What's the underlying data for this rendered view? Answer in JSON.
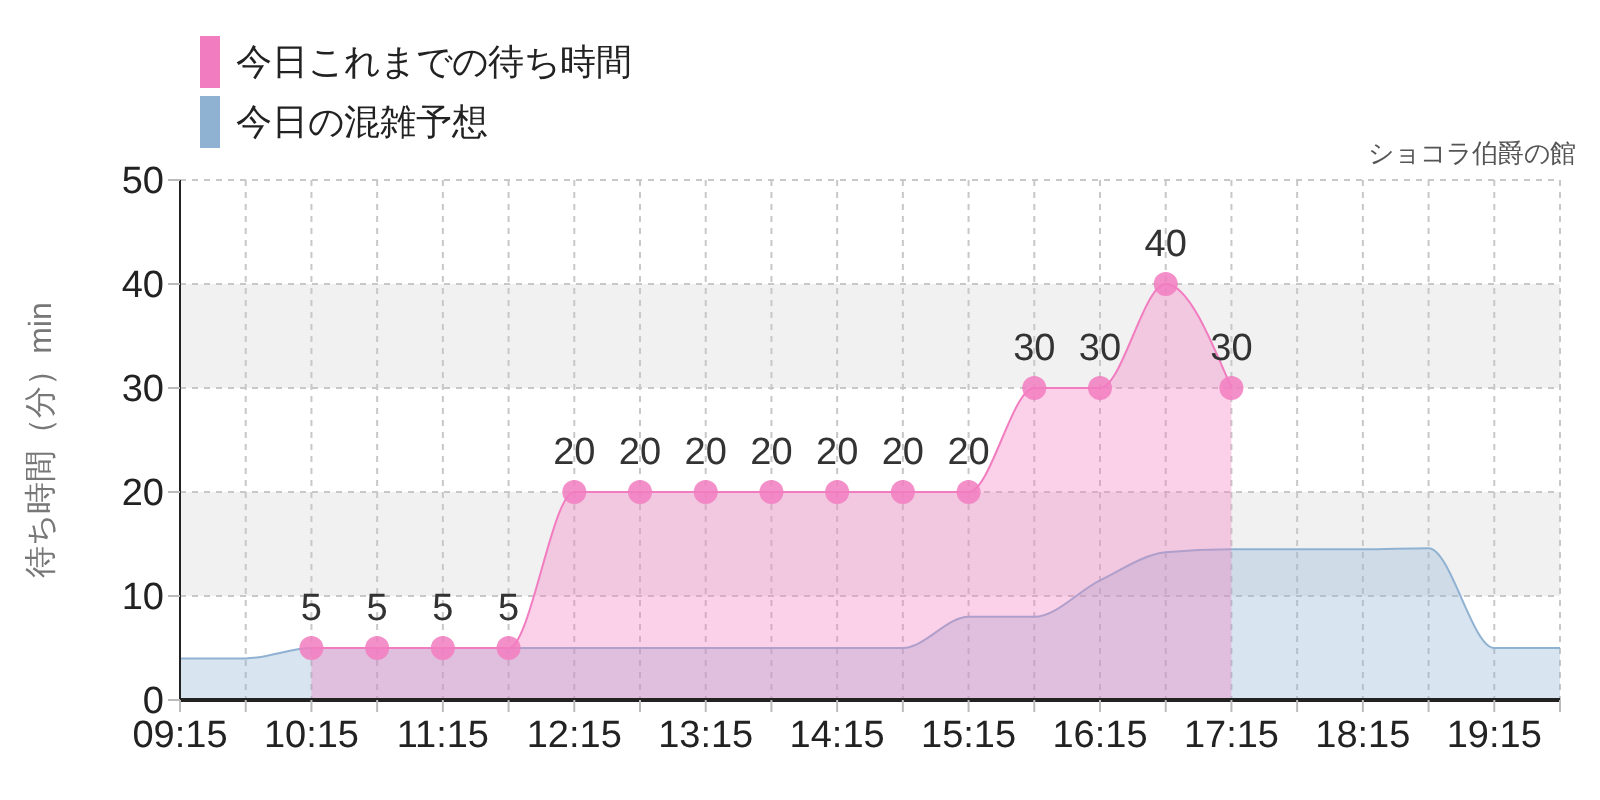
{
  "chart_data": {
    "type": "area",
    "subtitle": "ショコラ伯爵の館",
    "ylabel": "待ち時間（分）min",
    "x": [
      9.25,
      9.75,
      10.25,
      10.75,
      11.25,
      11.75,
      12.25,
      12.75,
      13.25,
      13.75,
      14.25,
      14.75,
      15.25,
      15.75,
      16.25,
      16.75,
      17.25,
      17.75,
      18.25,
      18.75,
      19.25,
      19.75
    ],
    "series": [
      {
        "name": "今日これまでの待ち時間",
        "color": "#f27cc0",
        "marker": "circle",
        "values": [
          null,
          null,
          5,
          5,
          5,
          5,
          20,
          20,
          20,
          20,
          20,
          20,
          20,
          30,
          30,
          40,
          30,
          null,
          null,
          null,
          null,
          null
        ],
        "value_labels": [
          null,
          null,
          "5",
          "5",
          "5",
          "5",
          "20",
          "20",
          "20",
          "20",
          "20",
          "20",
          "20",
          "30",
          "30",
          "40",
          "30",
          null,
          null,
          null,
          null,
          null
        ]
      },
      {
        "name": "今日の混雑予想",
        "color": "#8fb2d2",
        "marker": "none",
        "values": [
          4,
          4,
          5,
          5,
          5,
          5,
          5,
          5,
          5,
          5,
          5,
          5,
          8,
          8,
          11.5,
          14.2,
          14.5,
          14.5,
          14.5,
          14.6,
          5,
          5
        ]
      }
    ],
    "xlim": [
      9.25,
      19.75
    ],
    "xticks": [
      {
        "value": 9.25,
        "label": "09:15"
      },
      {
        "value": 9.75,
        "label": null
      },
      {
        "value": 10.25,
        "label": "10:15"
      },
      {
        "value": 10.75,
        "label": null
      },
      {
        "value": 11.25,
        "label": "11:15"
      },
      {
        "value": 11.75,
        "label": null
      },
      {
        "value": 12.25,
        "label": "12:15"
      },
      {
        "value": 12.75,
        "label": null
      },
      {
        "value": 13.25,
        "label": "13:15"
      },
      {
        "value": 13.75,
        "label": null
      },
      {
        "value": 14.25,
        "label": "14:15"
      },
      {
        "value": 14.75,
        "label": null
      },
      {
        "value": 15.25,
        "label": "15:15"
      },
      {
        "value": 15.75,
        "label": null
      },
      {
        "value": 16.25,
        "label": "16:15"
      },
      {
        "value": 16.75,
        "label": null
      },
      {
        "value": 17.25,
        "label": "17:15"
      },
      {
        "value": 17.75,
        "label": null
      },
      {
        "value": 18.25,
        "label": "18:15"
      },
      {
        "value": 18.75,
        "label": null
      },
      {
        "value": 19.25,
        "label": "19:15"
      },
      {
        "value": 19.75,
        "label": null
      }
    ],
    "ylim": [
      0,
      50
    ],
    "yticks": [
      0,
      10,
      20,
      30,
      40,
      50
    ],
    "grid": true,
    "legend": "top left"
  }
}
